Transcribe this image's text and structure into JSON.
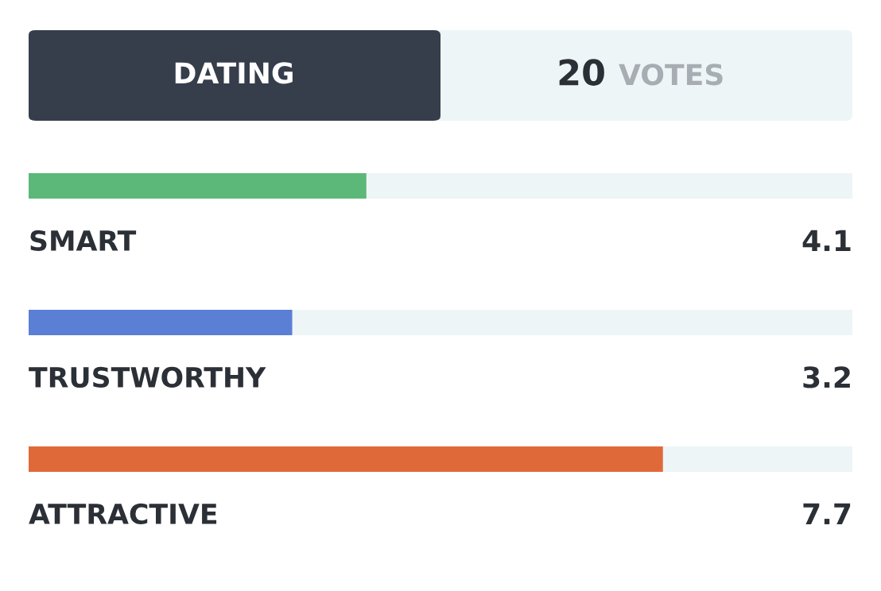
{
  "chart_data": {
    "type": "bar",
    "orientation": "horizontal",
    "title": "DATING",
    "annotations": [
      "20",
      "VOTES"
    ],
    "categories": [
      "SMART",
      "TRUSTWORTHY",
      "ATTRACTIVE"
    ],
    "values": [
      4.1,
      3.2,
      7.7
    ],
    "colors": [
      "#5cb878",
      "#5b7fd4",
      "#e0693a"
    ],
    "xlim": [
      0,
      10
    ],
    "data_labels": true
  }
}
